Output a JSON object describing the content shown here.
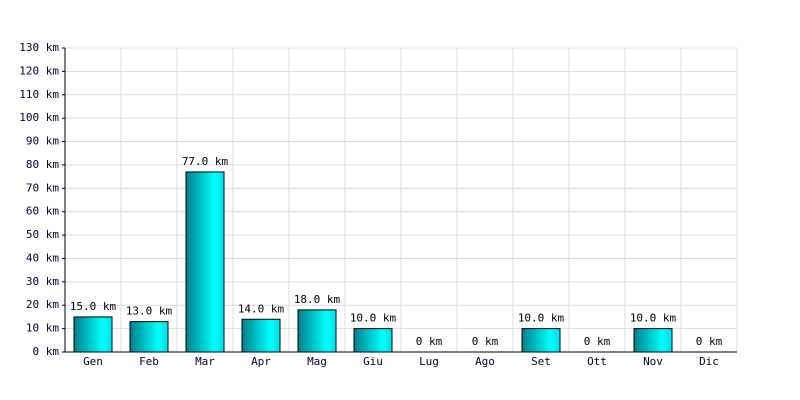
{
  "chart_data": {
    "type": "bar",
    "categories": [
      "Gen",
      "Feb",
      "Mar",
      "Apr",
      "Mag",
      "Giu",
      "Lug",
      "Ago",
      "Set",
      "Ott",
      "Nov",
      "Dic"
    ],
    "values": [
      15,
      13,
      77,
      14,
      18,
      10,
      0,
      0,
      10,
      0,
      10,
      0
    ],
    "value_labels": [
      "15.0 km",
      "13.0 km",
      "77.0 km",
      "14.0 km",
      "18.0 km",
      "10.0 km",
      "0 km",
      "0 km",
      "10.0 km",
      "0 km",
      "10.0 km",
      "0 km"
    ],
    "color": "#00e5e5",
    "ylim": [
      0,
      130
    ],
    "yticks": [
      {
        "value": 0,
        "label": "0 km"
      },
      {
        "value": 10,
        "label": "10 km"
      },
      {
        "value": 20,
        "label": "20 km"
      },
      {
        "value": 30,
        "label": "30 km"
      },
      {
        "value": 40,
        "label": "40 km"
      },
      {
        "value": 50,
        "label": "50 km"
      },
      {
        "value": 60,
        "label": "60 km"
      },
      {
        "value": 70,
        "label": "70 km"
      },
      {
        "value": 80,
        "label": "80 km"
      },
      {
        "value": 90,
        "label": "90 km"
      },
      {
        "value": 100,
        "label": "100 km"
      },
      {
        "value": 110,
        "label": "110 km"
      },
      {
        "value": 120,
        "label": "120 km"
      },
      {
        "value": 130,
        "label": "130 km"
      }
    ],
    "grid": true
  }
}
